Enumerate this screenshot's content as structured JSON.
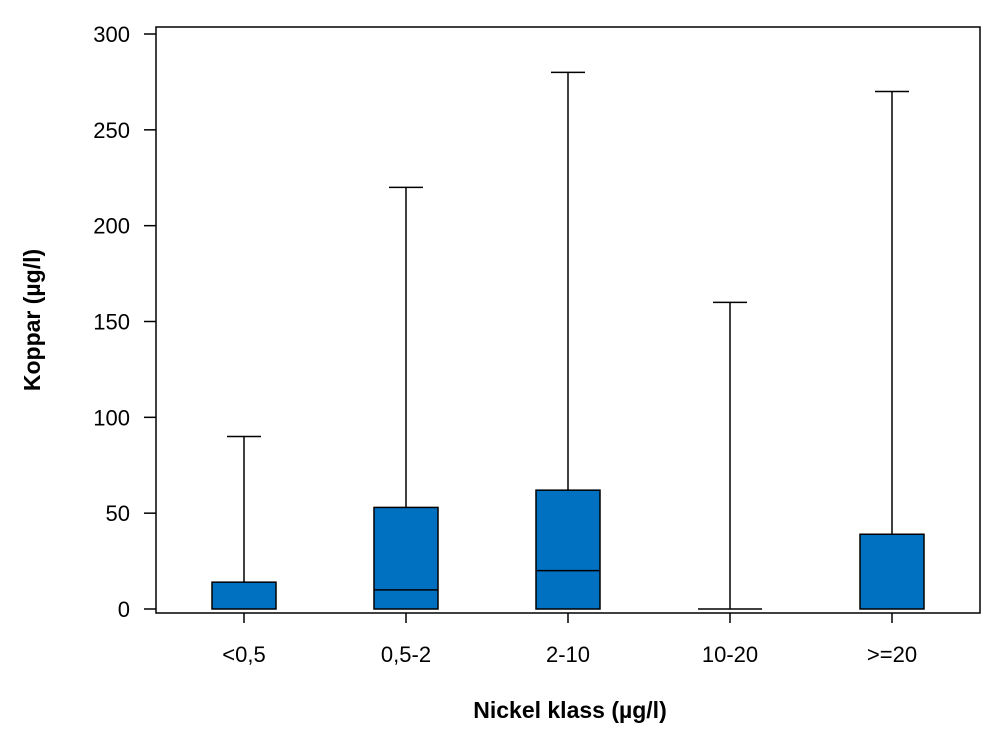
{
  "chart_data": {
    "type": "boxplot",
    "title": "",
    "xlabel": "Nickel klass (µg/l)",
    "ylabel": "Koppar (µg/l)",
    "ylim": [
      0,
      300
    ],
    "yticks": [
      0,
      50,
      100,
      150,
      200,
      250,
      300
    ],
    "ytick_labels": [
      "0",
      "50",
      "100",
      "150",
      "200",
      "250",
      "300"
    ],
    "grid": false,
    "box_color": "#0070C0",
    "categories": [
      "<0,5",
      "0,5-2",
      "2-10",
      "10-20",
      ">=20"
    ],
    "boxes": [
      {
        "category": "<0,5",
        "min": 0,
        "q1": 0,
        "median": 0,
        "q3": 14,
        "max": 90
      },
      {
        "category": "0,5-2",
        "min": 0,
        "q1": 0,
        "median": 10,
        "q3": 53,
        "max": 220
      },
      {
        "category": "2-10",
        "min": 0,
        "q1": 0,
        "median": 20,
        "q3": 62,
        "max": 280
      },
      {
        "category": "10-20",
        "min": 0,
        "q1": 0,
        "median": 0,
        "q3": 0,
        "max": 160
      },
      {
        "category": ">=20",
        "min": 0,
        "q1": 0,
        "median": 0,
        "q3": 39,
        "max": 270
      }
    ]
  }
}
